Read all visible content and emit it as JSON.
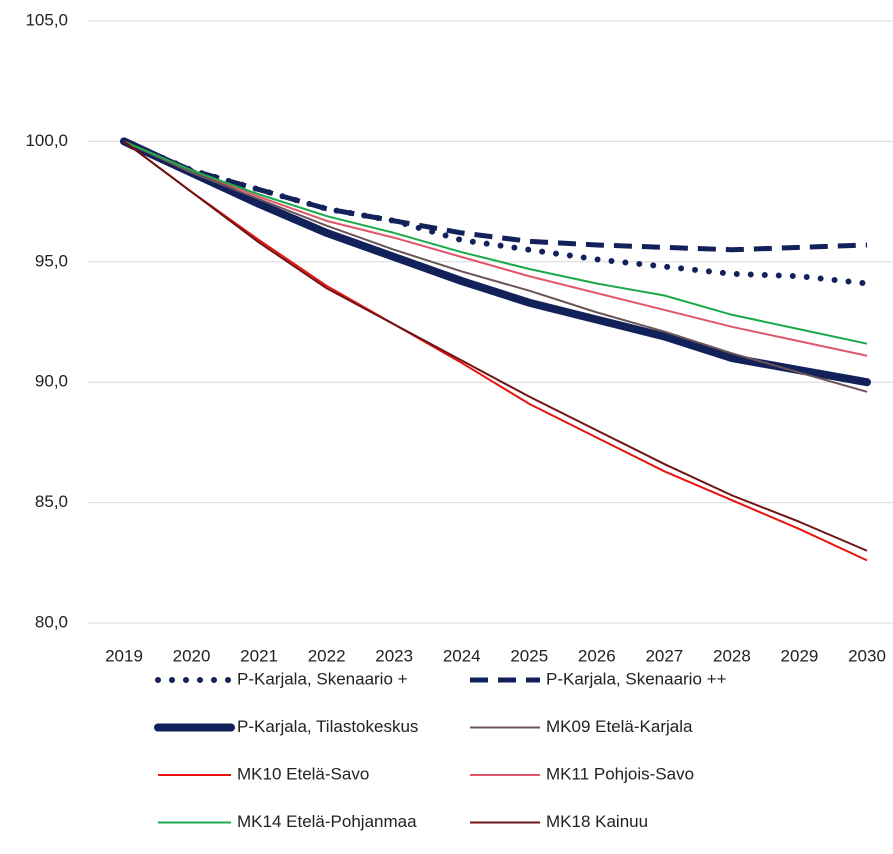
{
  "chart_data": {
    "type": "line",
    "categories": [
      "2019",
      "2020",
      "2021",
      "2022",
      "2023",
      "2024",
      "2025",
      "2026",
      "2027",
      "2028",
      "2029",
      "2030"
    ],
    "ylim": [
      80,
      105
    ],
    "yticks": [
      {
        "value": 80,
        "label": "80,0"
      },
      {
        "value": 85,
        "label": "85,0"
      },
      {
        "value": 90,
        "label": "90,0"
      },
      {
        "value": 95,
        "label": "95,0"
      },
      {
        "value": 100,
        "label": "100,0"
      },
      {
        "value": 105,
        "label": "105,0"
      }
    ],
    "grid": true,
    "legend": "bottom",
    "series": [
      {
        "name": "P-Karjala, Skenaario +",
        "color": "#13215b",
        "style": "dotted",
        "values": [
          100,
          98.8,
          98.0,
          97.2,
          96.7,
          95.9,
          95.5,
          95.1,
          94.8,
          94.5,
          94.4,
          94.1
        ]
      },
      {
        "name": "P-Karjala, Skenaario ++",
        "color": "#13215b",
        "style": "dashed",
        "values": [
          100,
          98.8,
          98.0,
          97.2,
          96.7,
          96.2,
          95.85,
          95.7,
          95.6,
          95.5,
          95.6,
          95.7
        ]
      },
      {
        "name": "P-Karjala, Tilastokeskus",
        "color": "#13215b",
        "style": "thick",
        "values": [
          100,
          98.7,
          97.4,
          96.2,
          95.2,
          94.2,
          93.3,
          92.6,
          91.9,
          91.0,
          90.5,
          90.0
        ]
      },
      {
        "name": "MK09 Etelä-Karjala",
        "color": "#6b5458",
        "style": "solid",
        "values": [
          100,
          98.7,
          97.6,
          96.5,
          95.5,
          94.6,
          93.8,
          92.9,
          92.1,
          91.2,
          90.4,
          89.6
        ]
      },
      {
        "name": "MK10 Etelä-Savo",
        "color": "#e8130f",
        "style": "solid",
        "values": [
          100,
          97.9,
          95.9,
          94.0,
          92.4,
          90.8,
          89.1,
          87.7,
          86.3,
          85.1,
          83.9,
          82.6
        ]
      },
      {
        "name": "MK11 Pohjois-Savo",
        "color": "#e0566a",
        "style": "solid",
        "values": [
          100,
          98.8,
          97.7,
          96.7,
          96.0,
          95.2,
          94.4,
          93.7,
          93.0,
          92.3,
          91.7,
          91.1
        ]
      },
      {
        "name": "MK14 Etelä-Pohjanmaa",
        "color": "#1aaa48",
        "style": "solid",
        "values": [
          100,
          98.8,
          97.8,
          96.9,
          96.2,
          95.4,
          94.7,
          94.1,
          93.6,
          92.8,
          92.2,
          91.6
        ]
      },
      {
        "name": "MK18 Kainuu",
        "color": "#6e1414",
        "style": "solid",
        "values": [
          100,
          97.9,
          95.8,
          93.9,
          92.4,
          90.9,
          89.4,
          88.0,
          86.6,
          85.3,
          84.2,
          83.0
        ]
      }
    ]
  }
}
